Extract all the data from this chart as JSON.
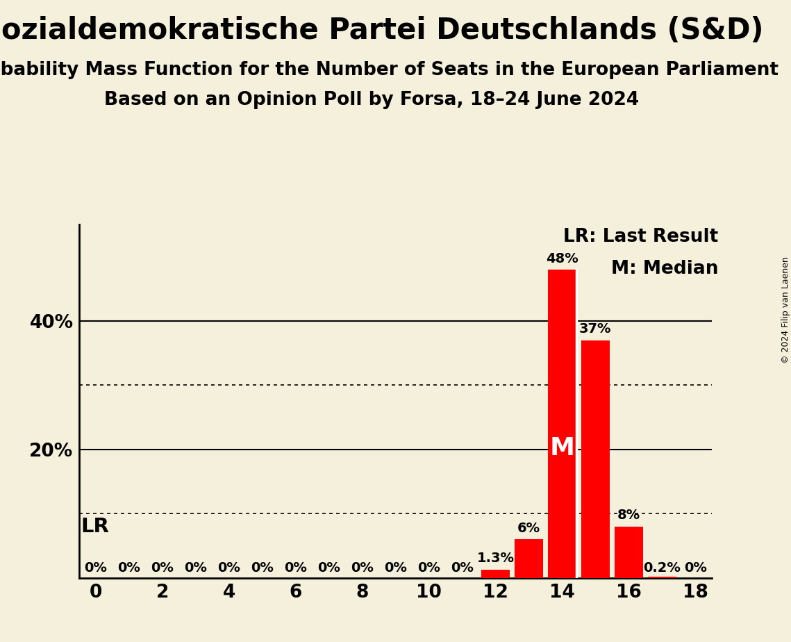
{
  "title": "Sozialdemokratische Partei Deutschlands (S&D)",
  "subtitle1": "Probability Mass Function for the Number of Seats in the European Parliament",
  "subtitle2": "Based on an Opinion Poll by Forsa, 18–24 June 2024",
  "copyright": "© 2024 Filip van Laenen",
  "background_color": "#f5f0dc",
  "bar_color": "#ff0000",
  "seats": [
    0,
    1,
    2,
    3,
    4,
    5,
    6,
    7,
    8,
    9,
    10,
    11,
    12,
    13,
    14,
    15,
    16,
    17,
    18
  ],
  "probabilities": [
    0,
    0,
    0,
    0,
    0,
    0,
    0,
    0,
    0,
    0,
    0,
    0,
    1.3,
    6,
    48,
    37,
    8,
    0.2,
    0
  ],
  "bar_labels": [
    "0%",
    "0%",
    "0%",
    "0%",
    "0%",
    "0%",
    "0%",
    "0%",
    "0%",
    "0%",
    "0%",
    "0%",
    "1.3%",
    "6%",
    "48%",
    "37%",
    "8%",
    "0.2%",
    "0%"
  ],
  "median_seat": 14,
  "solid_gridlines": [
    20,
    40
  ],
  "dotted_gridlines": [
    10,
    30
  ],
  "yticks": [
    20,
    40
  ],
  "ylim": [
    0,
    55
  ],
  "xlim": [
    -0.5,
    18.5
  ],
  "xticks": [
    0,
    2,
    4,
    6,
    8,
    10,
    12,
    14,
    16,
    18
  ],
  "lr_label": "LR",
  "title_fontsize": 30,
  "subtitle1_fontsize": 19,
  "subtitle2_fontsize": 19,
  "tick_fontsize": 19,
  "legend_fontsize": 19,
  "lr_fontsize": 21,
  "m_fontsize": 26,
  "bar_label_fontsize": 14,
  "copyright_fontsize": 9
}
